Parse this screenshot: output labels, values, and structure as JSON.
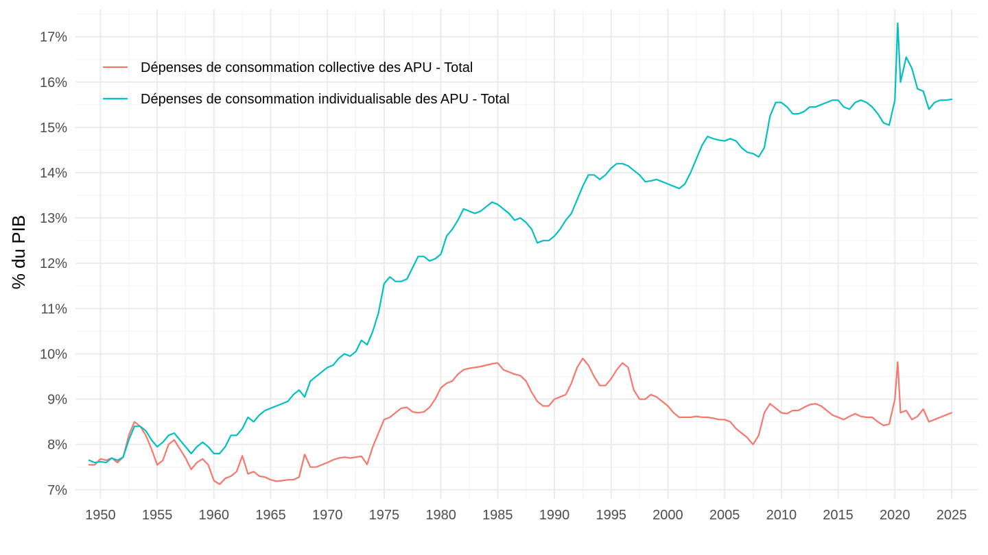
{
  "chart_data": {
    "type": "line",
    "title": "",
    "xlabel": "",
    "ylabel": "% du PIB",
    "xlim": [
      1947.8,
      2027.3
    ],
    "ylim": [
      6.8,
      17.6
    ],
    "grid": true,
    "legend_position": "top-left",
    "x_ticks": [
      1950,
      1955,
      1960,
      1965,
      1970,
      1975,
      1980,
      1985,
      1990,
      1995,
      2000,
      2005,
      2010,
      2015,
      2020,
      2025
    ],
    "x_tick_labels": [
      "1950",
      "1955",
      "1960",
      "1965",
      "1970",
      "1975",
      "1980",
      "1985",
      "1990",
      "1995",
      "2000",
      "2005",
      "2010",
      "2015",
      "2020",
      "2025"
    ],
    "y_ticks": [
      7,
      8,
      9,
      10,
      11,
      12,
      13,
      14,
      15,
      16,
      17
    ],
    "y_tick_labels": [
      "7%",
      "8%",
      "9%",
      "10%",
      "11%",
      "12%",
      "13%",
      "14%",
      "15%",
      "16%",
      "17%"
    ],
    "series": [
      {
        "name": "Dépenses de consommation collective des APU - Total",
        "color": "#F8766D",
        "x": [
          1949.0,
          1949.5,
          1950.0,
          1950.5,
          1951.0,
          1951.5,
          1952.0,
          1952.5,
          1953.0,
          1953.5,
          1954.0,
          1954.5,
          1955.0,
          1955.5,
          1956.0,
          1956.5,
          1957.0,
          1957.5,
          1958.0,
          1958.5,
          1959.0,
          1959.5,
          1960.0,
          1960.5,
          1961.0,
          1961.5,
          1962.0,
          1962.5,
          1963.0,
          1963.5,
          1964.0,
          1964.5,
          1965.0,
          1965.5,
          1966.0,
          1966.5,
          1967.0,
          1967.5,
          1968.0,
          1968.5,
          1969.0,
          1969.5,
          1970.0,
          1970.5,
          1971.0,
          1971.5,
          1972.0,
          1972.5,
          1973.0,
          1973.5,
          1974.0,
          1974.5,
          1975.0,
          1975.5,
          1976.0,
          1976.5,
          1977.0,
          1977.5,
          1978.0,
          1978.5,
          1979.0,
          1979.5,
          1980.0,
          1980.5,
          1981.0,
          1981.5,
          1982.0,
          1982.5,
          1983.0,
          1983.5,
          1984.0,
          1984.5,
          1985.0,
          1985.5,
          1986.0,
          1986.5,
          1987.0,
          1987.5,
          1988.0,
          1988.5,
          1989.0,
          1989.5,
          1990.0,
          1990.5,
          1991.0,
          1991.5,
          1992.0,
          1992.5,
          1993.0,
          1993.5,
          1994.0,
          1994.5,
          1995.0,
          1995.5,
          1996.0,
          1996.5,
          1997.0,
          1997.5,
          1998.0,
          1998.5,
          1999.0,
          1999.5,
          2000.0,
          2000.5,
          2001.0,
          2001.5,
          2002.0,
          2002.5,
          2003.0,
          2003.5,
          2004.0,
          2004.5,
          2005.0,
          2005.5,
          2006.0,
          2006.5,
          2007.0,
          2007.5,
          2008.0,
          2008.5,
          2009.0,
          2009.5,
          2010.0,
          2010.5,
          2011.0,
          2011.5,
          2012.0,
          2012.5,
          2013.0,
          2013.5,
          2014.0,
          2014.5,
          2015.0,
          2015.5,
          2016.0,
          2016.5,
          2017.0,
          2017.5,
          2018.0,
          2018.5,
          2019.0,
          2019.5,
          2020.0,
          2020.25,
          2020.5,
          2021.0,
          2021.5,
          2022.0,
          2022.5,
          2023.0,
          2023.5,
          2024.0,
          2024.5,
          2025.0
        ],
        "y": [
          7.55,
          7.55,
          7.68,
          7.65,
          7.7,
          7.6,
          7.72,
          8.2,
          8.5,
          8.4,
          8.2,
          7.9,
          7.55,
          7.65,
          8.0,
          8.1,
          7.9,
          7.7,
          7.45,
          7.6,
          7.68,
          7.55,
          7.2,
          7.12,
          7.25,
          7.3,
          7.4,
          7.75,
          7.35,
          7.4,
          7.3,
          7.28,
          7.22,
          7.19,
          7.2,
          7.22,
          7.22,
          7.28,
          7.78,
          7.5,
          7.5,
          7.55,
          7.6,
          7.66,
          7.7,
          7.72,
          7.7,
          7.72,
          7.74,
          7.56,
          7.95,
          8.25,
          8.55,
          8.6,
          8.7,
          8.8,
          8.82,
          8.72,
          8.7,
          8.72,
          8.82,
          9.0,
          9.25,
          9.35,
          9.4,
          9.55,
          9.65,
          9.68,
          9.7,
          9.72,
          9.75,
          9.78,
          9.8,
          9.65,
          9.6,
          9.55,
          9.52,
          9.4,
          9.15,
          8.95,
          8.85,
          8.85,
          9.0,
          9.05,
          9.1,
          9.35,
          9.7,
          9.9,
          9.75,
          9.5,
          9.3,
          9.3,
          9.45,
          9.65,
          9.8,
          9.7,
          9.2,
          9.0,
          9.0,
          9.1,
          9.05,
          8.95,
          8.85,
          8.7,
          8.6,
          8.6,
          8.6,
          8.62,
          8.6,
          8.6,
          8.58,
          8.55,
          8.55,
          8.5,
          8.35,
          8.25,
          8.15,
          8.0,
          8.2,
          8.7,
          8.9,
          8.8,
          8.7,
          8.68,
          8.75,
          8.75,
          8.82,
          8.88,
          8.9,
          8.85,
          8.75,
          8.65,
          8.6,
          8.55,
          8.62,
          8.68,
          8.62,
          8.6,
          8.6,
          8.5,
          8.42,
          8.45,
          9.0,
          9.82,
          8.7,
          8.75,
          8.55,
          8.62,
          8.78,
          8.5,
          8.55,
          8.6,
          8.65,
          8.7
        ],
        "stroke_width": 2.2
      },
      {
        "name": "Dépenses de consommation individualisable des APU - Total",
        "color": "#00BFC4",
        "x": [
          1949.0,
          1949.5,
          1950.0,
          1950.5,
          1951.0,
          1951.5,
          1952.0,
          1952.5,
          1953.0,
          1953.5,
          1954.0,
          1954.5,
          1955.0,
          1955.5,
          1956.0,
          1956.5,
          1957.0,
          1957.5,
          1958.0,
          1958.5,
          1959.0,
          1959.5,
          1960.0,
          1960.5,
          1961.0,
          1961.5,
          1962.0,
          1962.5,
          1963.0,
          1963.5,
          1964.0,
          1964.5,
          1965.0,
          1965.5,
          1966.0,
          1966.5,
          1967.0,
          1967.5,
          1968.0,
          1968.5,
          1969.0,
          1969.5,
          1970.0,
          1970.5,
          1971.0,
          1971.5,
          1972.0,
          1972.5,
          1973.0,
          1973.5,
          1974.0,
          1974.5,
          1975.0,
          1975.5,
          1976.0,
          1976.5,
          1977.0,
          1977.5,
          1978.0,
          1978.5,
          1979.0,
          1979.5,
          1980.0,
          1980.5,
          1981.0,
          1981.5,
          1982.0,
          1982.5,
          1983.0,
          1983.5,
          1984.0,
          1984.5,
          1985.0,
          1985.5,
          1986.0,
          1986.5,
          1987.0,
          1987.5,
          1988.0,
          1988.5,
          1989.0,
          1989.5,
          1990.0,
          1990.5,
          1991.0,
          1991.5,
          1992.0,
          1992.5,
          1993.0,
          1993.5,
          1994.0,
          1994.5,
          1995.0,
          1995.5,
          1996.0,
          1996.5,
          1997.0,
          1997.5,
          1998.0,
          1998.5,
          1999.0,
          1999.5,
          2000.0,
          2000.5,
          2001.0,
          2001.5,
          2002.0,
          2002.5,
          2003.0,
          2003.5,
          2004.0,
          2004.5,
          2005.0,
          2005.5,
          2006.0,
          2006.5,
          2007.0,
          2007.5,
          2008.0,
          2008.5,
          2009.0,
          2009.5,
          2010.0,
          2010.5,
          2011.0,
          2011.5,
          2012.0,
          2012.5,
          2013.0,
          2013.5,
          2014.0,
          2014.5,
          2015.0,
          2015.5,
          2016.0,
          2016.5,
          2017.0,
          2017.5,
          2018.0,
          2018.5,
          2019.0,
          2019.5,
          2020.0,
          2020.25,
          2020.5,
          2021.0,
          2021.5,
          2022.0,
          2022.5,
          2023.0,
          2023.5,
          2024.0,
          2024.5,
          2025.0
        ],
        "y": [
          7.65,
          7.6,
          7.62,
          7.6,
          7.7,
          7.65,
          7.72,
          8.1,
          8.4,
          8.4,
          8.3,
          8.1,
          7.95,
          8.05,
          8.2,
          8.25,
          8.1,
          7.95,
          7.8,
          7.95,
          8.05,
          7.95,
          7.8,
          7.8,
          7.95,
          8.2,
          8.2,
          8.35,
          8.6,
          8.5,
          8.65,
          8.75,
          8.8,
          8.85,
          8.9,
          8.95,
          9.1,
          9.2,
          9.05,
          9.4,
          9.5,
          9.6,
          9.7,
          9.75,
          9.9,
          10.0,
          9.95,
          10.05,
          10.3,
          10.2,
          10.5,
          10.9,
          11.55,
          11.7,
          11.6,
          11.6,
          11.65,
          11.9,
          12.15,
          12.15,
          12.05,
          12.1,
          12.2,
          12.6,
          12.75,
          12.95,
          13.2,
          13.15,
          13.1,
          13.15,
          13.25,
          13.35,
          13.3,
          13.2,
          13.1,
          12.95,
          13.0,
          12.9,
          12.75,
          12.45,
          12.5,
          12.5,
          12.6,
          12.75,
          12.95,
          13.1,
          13.4,
          13.7,
          13.95,
          13.95,
          13.85,
          13.95,
          14.1,
          14.2,
          14.2,
          14.15,
          14.05,
          13.95,
          13.8,
          13.82,
          13.85,
          13.8,
          13.75,
          13.7,
          13.65,
          13.75,
          14.0,
          14.3,
          14.6,
          14.8,
          14.75,
          14.72,
          14.7,
          14.75,
          14.7,
          14.55,
          14.45,
          14.42,
          14.35,
          14.55,
          15.25,
          15.55,
          15.55,
          15.45,
          15.3,
          15.3,
          15.35,
          15.45,
          15.45,
          15.5,
          15.55,
          15.6,
          15.6,
          15.45,
          15.4,
          15.55,
          15.6,
          15.55,
          15.45,
          15.3,
          15.1,
          15.05,
          15.6,
          17.3,
          16.0,
          16.55,
          16.3,
          15.85,
          15.8,
          15.4,
          15.55,
          15.6,
          15.6,
          15.62
        ],
        "stroke_width": 2.2
      }
    ]
  }
}
